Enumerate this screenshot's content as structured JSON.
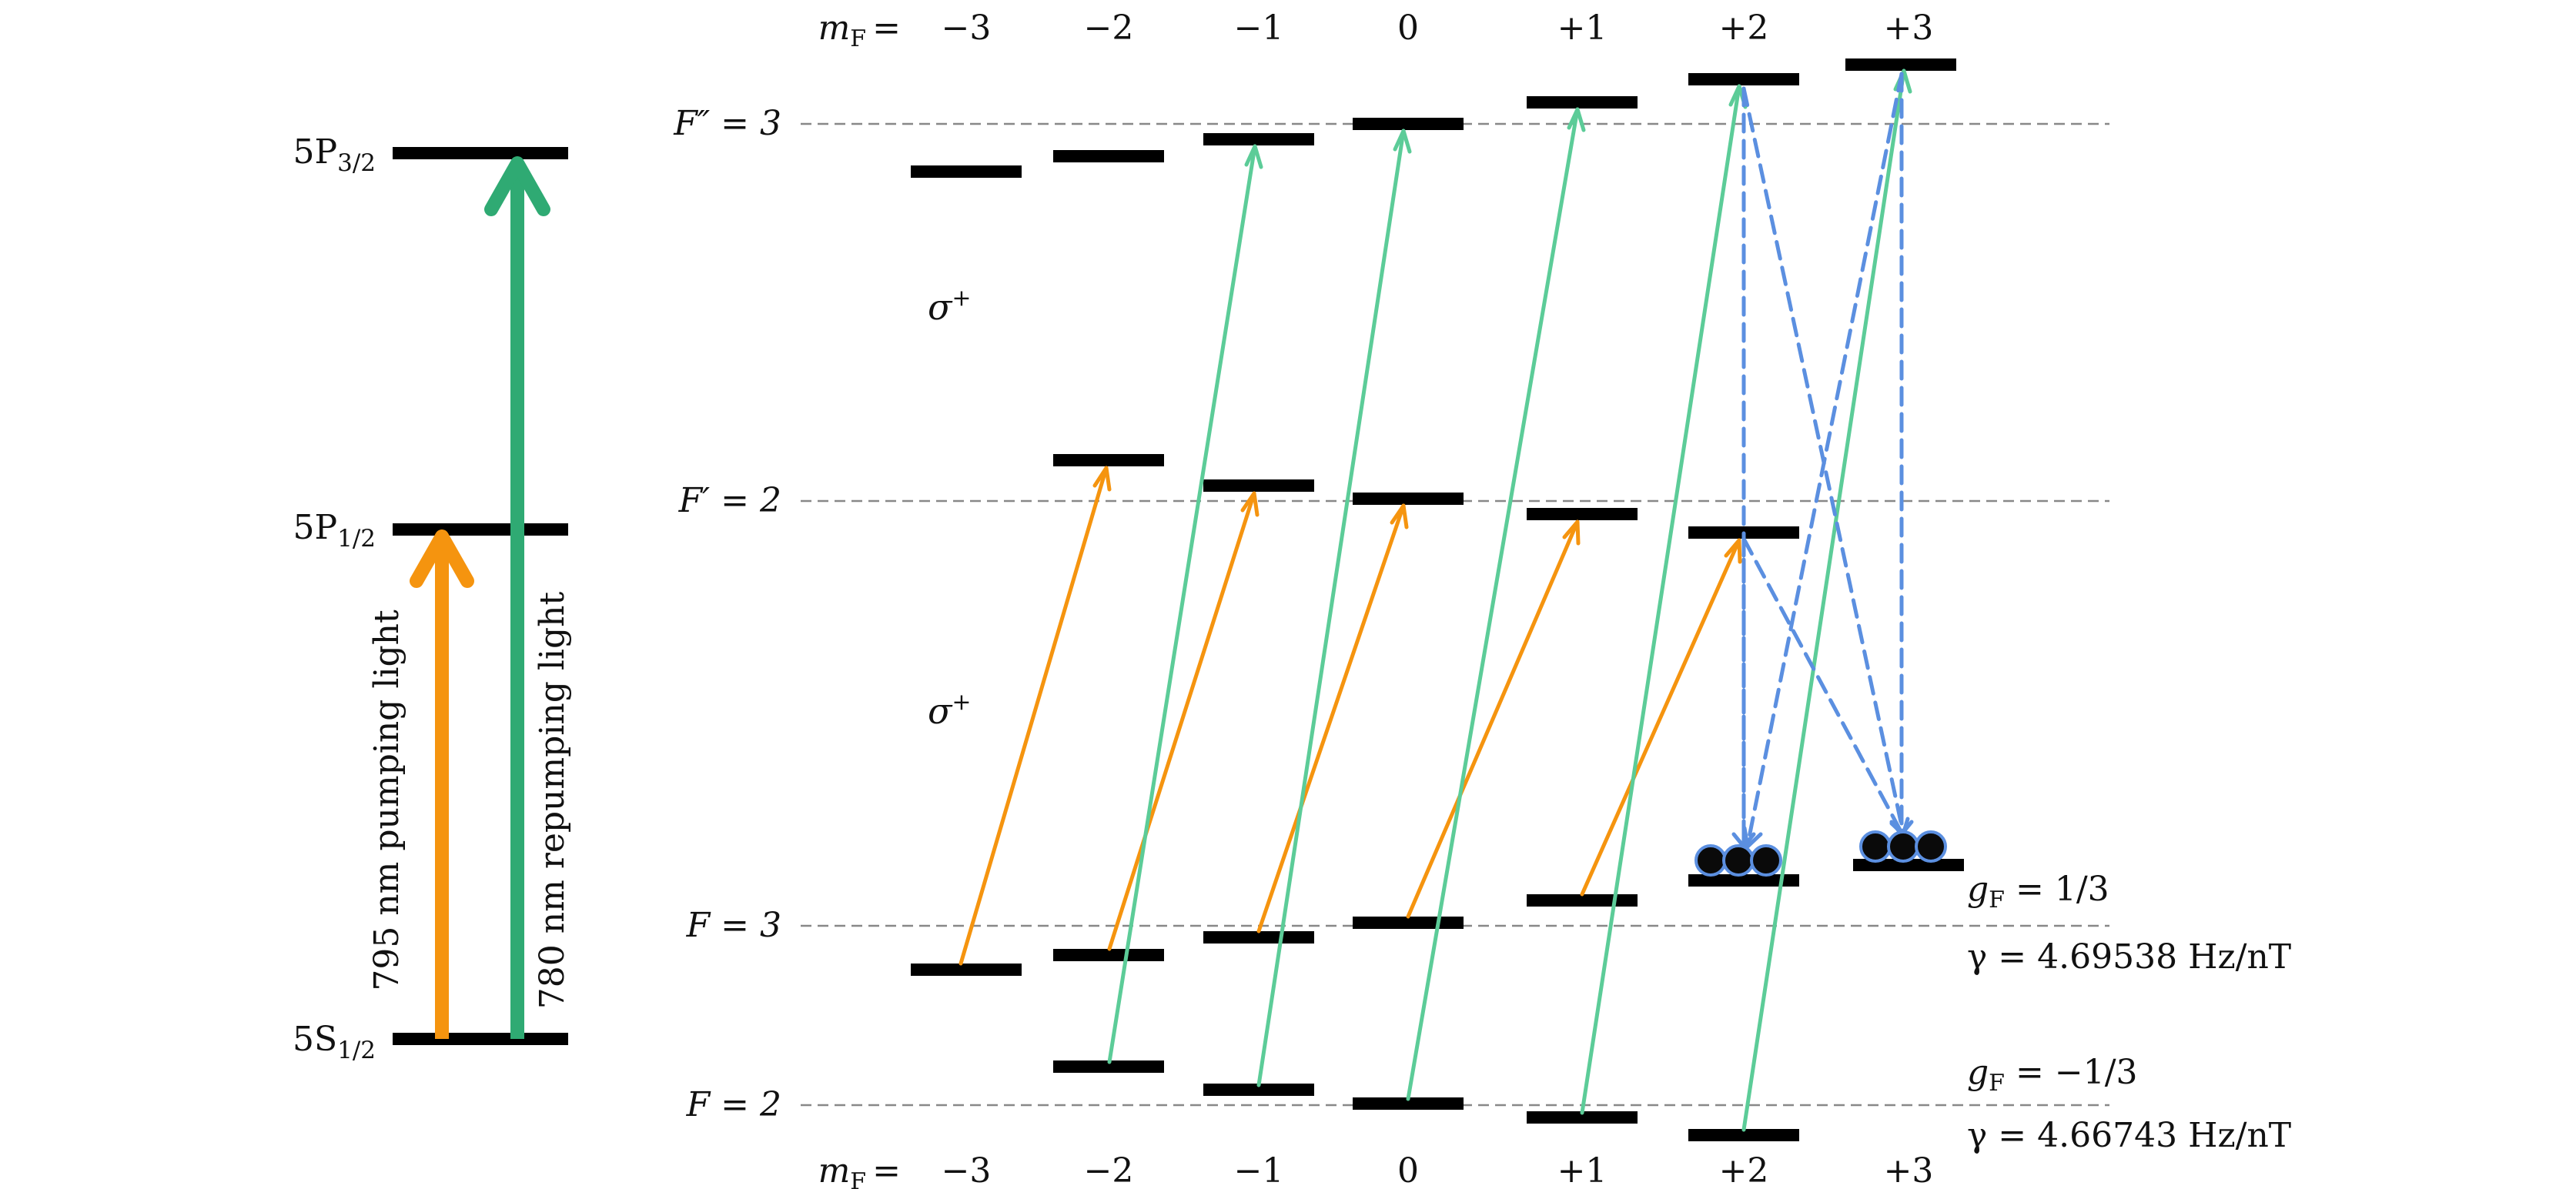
{
  "left_diagram": {
    "levels": [
      {
        "id": "5s",
        "base": "5S",
        "sub": "1/2"
      },
      {
        "id": "5p12",
        "base": "5P",
        "sub": "1/2"
      },
      {
        "id": "5p32",
        "base": "5P",
        "sub": "3/2"
      }
    ],
    "pump_label": "795 nm pumping light",
    "repump_label": "780 nm repumping light",
    "colors": {
      "pump": "#f5940f",
      "repump": "#2faa73"
    }
  },
  "mf": {
    "prefix_base": "m",
    "prefix_sub": "F",
    "prefix_eq": "=",
    "values": [
      "−3",
      "−2",
      "−1",
      "0",
      "+1",
      "+2",
      "+3"
    ]
  },
  "manifolds": [
    {
      "id": "Fpp3",
      "label": "F″ = 3"
    },
    {
      "id": "Fp2",
      "label": "F′ = 2"
    },
    {
      "id": "F3",
      "label": "F = 3"
    },
    {
      "id": "F2",
      "label": "F = 2"
    }
  ],
  "sigma_label": "σ",
  "sigma_sup": "+",
  "right_notes": {
    "f3_g_base": "g",
    "f3_g_sub": "F",
    "f3_g_value": " = 1/3",
    "f3_gamma": "γ = 4.69538 Hz/nT",
    "f2_g_base": "g",
    "f2_g_sub": "F",
    "f2_g_value": " = −1/3",
    "f2_gamma": "γ = 4.66743 Hz/nT"
  },
  "colors": {
    "pump": "#f5940f",
    "repump": "#5ccc98",
    "decay": "#5b8fe0",
    "atom": "#0a0a0a",
    "level": "#000000",
    "dashed": "#888888"
  }
}
